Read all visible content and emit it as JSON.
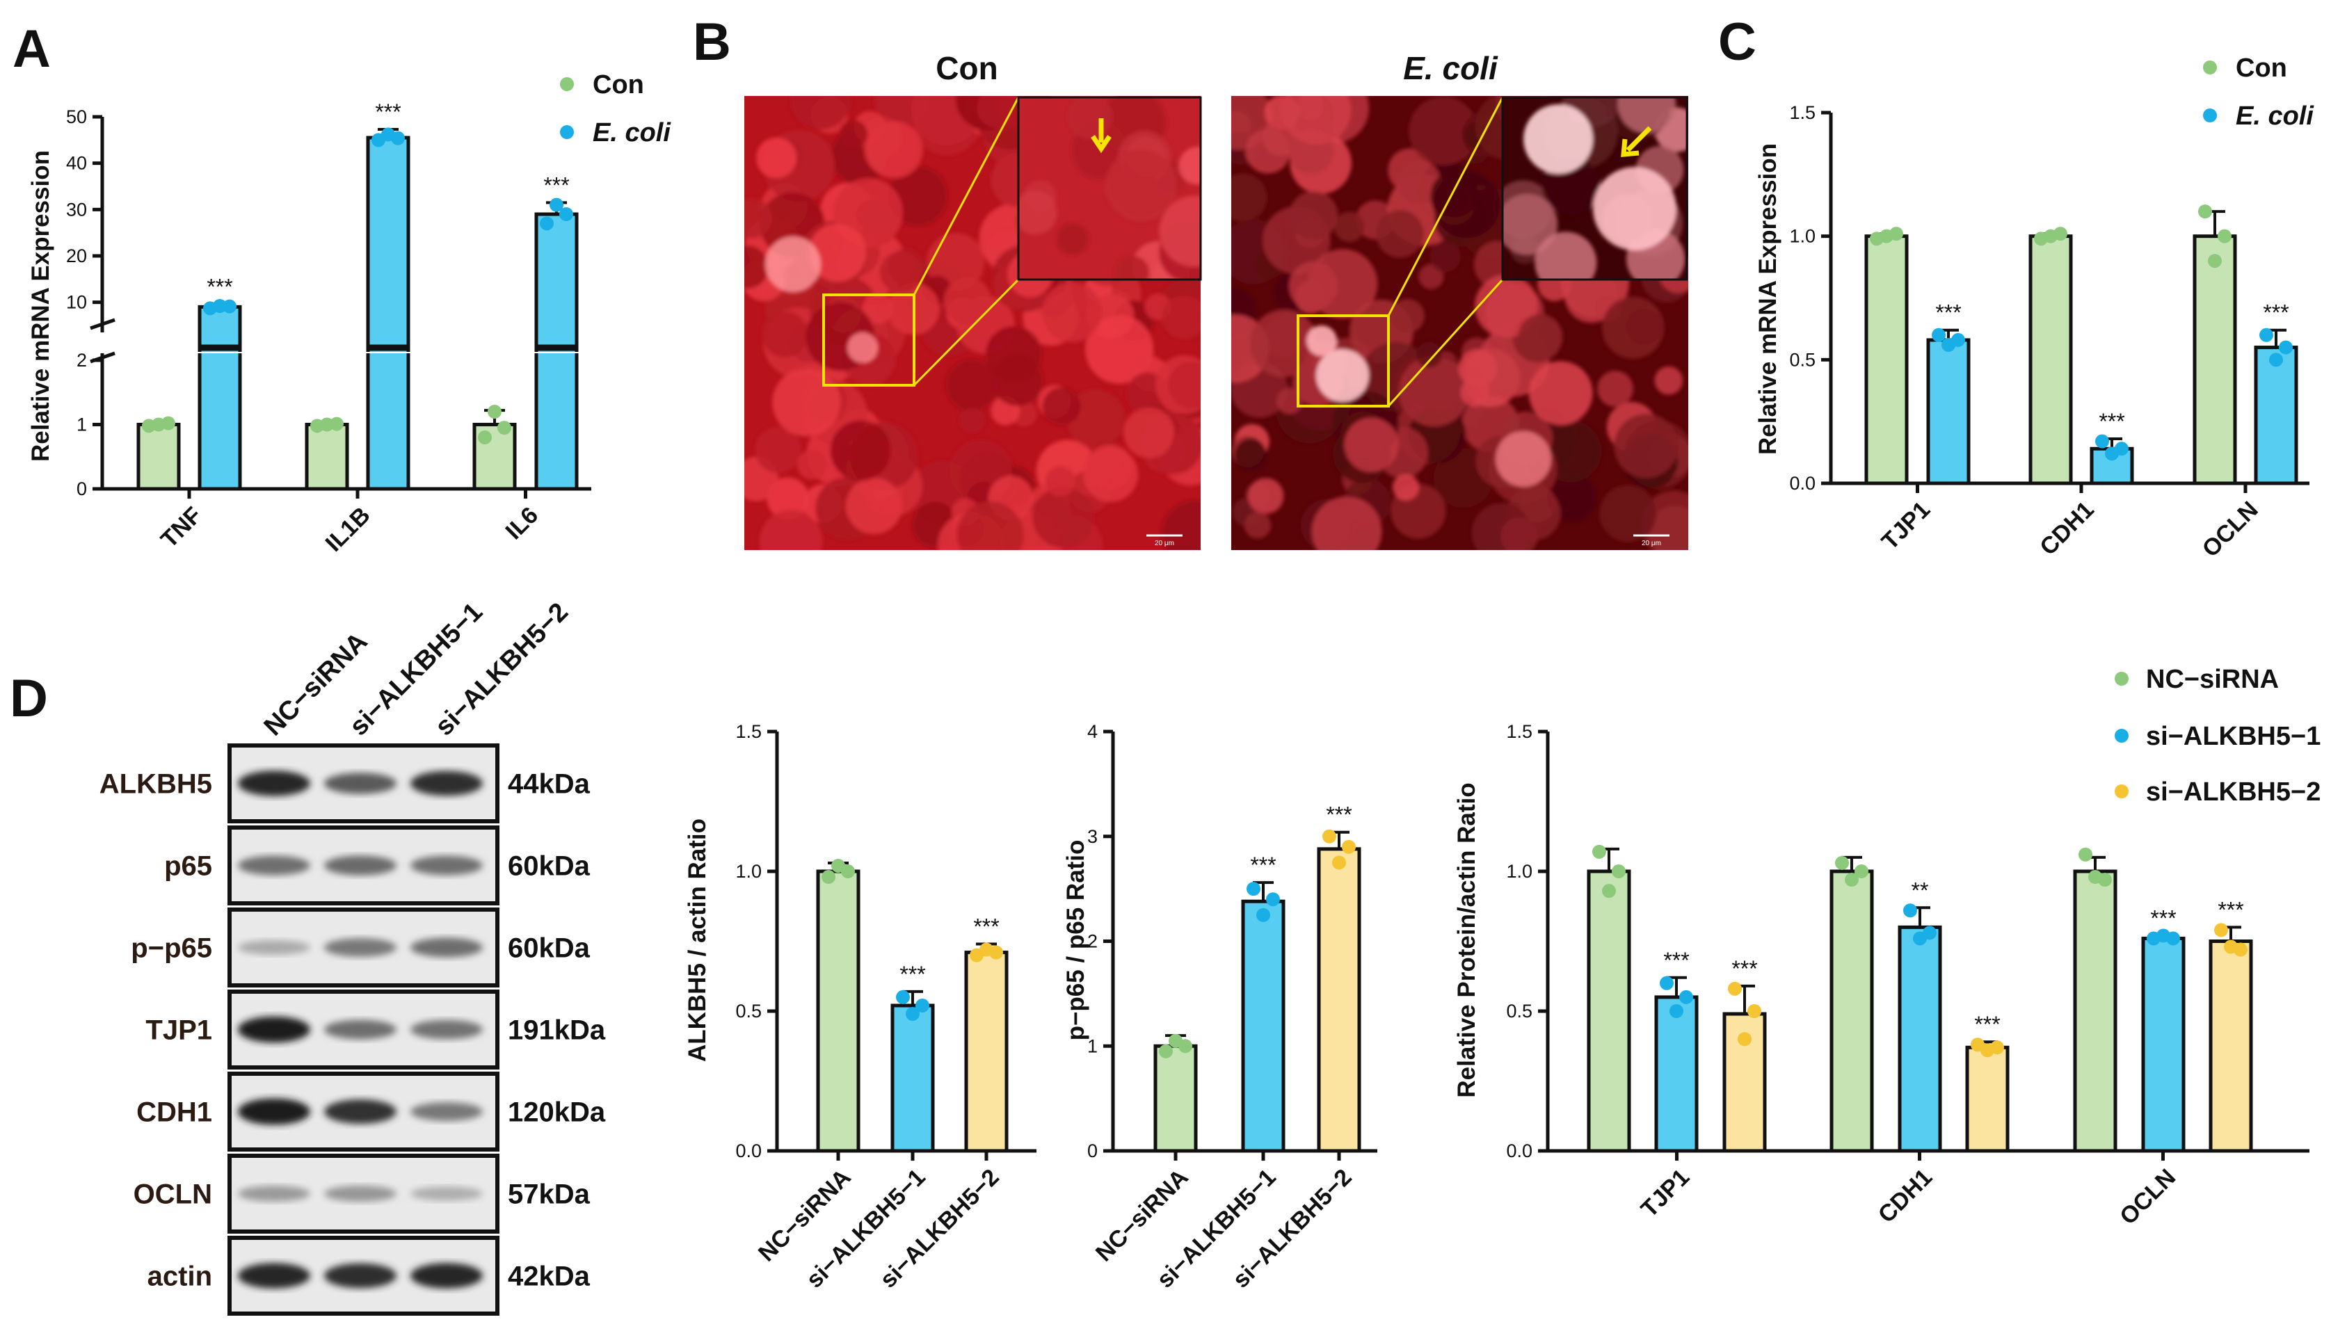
{
  "colors": {
    "con": "#8cc97a",
    "con_fill": "#c6e3b4",
    "ecoli": "#1aaee6",
    "ecoli_fill": "#58cdf2",
    "si2": "#f5c433",
    "si2_fill": "#fbe3a0",
    "axis": "#111111",
    "inset": "#f3e300"
  },
  "panel_labels": {
    "A": "A",
    "B": "B",
    "C": "C",
    "D": "D"
  },
  "legend_ac": {
    "con": "Con",
    "ecoli": "E. coli"
  },
  "legend_d": {
    "nc": "NC−siRNA",
    "si1": "si−ALKBH5−1",
    "si2": "si−ALKBH5−2"
  },
  "panel_b": {
    "con_title": "Con",
    "ecoli_title": "E. coli",
    "scale_label": "20 μm"
  },
  "western_blot": {
    "lanes": [
      "NC−siRNA",
      "si−ALKBH5−1",
      "si−ALKBH5−2"
    ],
    "rows": [
      {
        "protein": "ALKBH5",
        "kda": "44kDa",
        "intensity": [
          0.85,
          0.6,
          0.82
        ]
      },
      {
        "protein": "p65",
        "kda": "60kDa",
        "intensity": [
          0.5,
          0.52,
          0.5
        ]
      },
      {
        "protein": "p−p65",
        "kda": "60kDa",
        "intensity": [
          0.2,
          0.45,
          0.5
        ]
      },
      {
        "protein": "TJP1",
        "kda": "191kDa",
        "intensity": [
          0.9,
          0.5,
          0.48
        ]
      },
      {
        "protein": "CDH1",
        "kda": "120kDa",
        "intensity": [
          0.92,
          0.8,
          0.45
        ]
      },
      {
        "protein": "OCLN",
        "kda": "57kDa",
        "intensity": [
          0.28,
          0.3,
          0.18
        ]
      },
      {
        "protein": "actin",
        "kda": "42kDa",
        "intensity": [
          0.85,
          0.82,
          0.85
        ]
      }
    ]
  },
  "chart_data": [
    {
      "id": "A",
      "type": "bar",
      "ylabel": "Relative mRNA Expression",
      "categories": [
        "TNF",
        "IL1B",
        "IL6"
      ],
      "y_axis_broken": true,
      "lower_segment": {
        "ylim": [
          0,
          2
        ],
        "ticks": [
          "0",
          "1",
          "2"
        ]
      },
      "upper_segment": {
        "ylim": [
          5,
          50
        ],
        "ticks": [
          "10",
          "20",
          "30",
          "40",
          "50"
        ]
      },
      "series": [
        {
          "name": "Con",
          "values": [
            1.0,
            1.0,
            1.0
          ],
          "errors": [
            0.03,
            0.04,
            0.22
          ],
          "points": [
            [
              0.98,
              1.0,
              1.02
            ],
            [
              0.98,
              1.0,
              1.01
            ],
            [
              0.8,
              1.2,
              0.95
            ]
          ],
          "stars": [
            "",
            "",
            ""
          ]
        },
        {
          "name": "E. coli",
          "values": [
            9.0,
            45.5,
            29.0
          ],
          "errors": [
            0.6,
            1.8,
            2.5
          ],
          "points": [
            [
              8.7,
              9.2,
              9.1
            ],
            [
              45.0,
              46.2,
              45.4
            ],
            [
              27.0,
              31.0,
              29.0
            ]
          ],
          "stars": [
            "***",
            "***",
            "***"
          ]
        }
      ]
    },
    {
      "id": "C",
      "type": "bar",
      "ylabel": "Relative mRNA Expression",
      "categories": [
        "TJP1",
        "CDH1",
        "OCLN"
      ],
      "ylim": [
        0,
        1.5
      ],
      "ticks": [
        "0.0",
        "0.5",
        "1.0",
        "1.5"
      ],
      "series": [
        {
          "name": "Con",
          "values": [
            1.0,
            1.0,
            1.0
          ],
          "errors": [
            0.01,
            0.01,
            0.1
          ],
          "points": [
            [
              0.99,
              1.0,
              1.01
            ],
            [
              0.99,
              1.0,
              1.01
            ],
            [
              1.1,
              0.9,
              1.0
            ]
          ],
          "stars": [
            "",
            "",
            ""
          ]
        },
        {
          "name": "E. coli",
          "values": [
            0.58,
            0.14,
            0.55
          ],
          "errors": [
            0.04,
            0.04,
            0.07
          ],
          "points": [
            [
              0.6,
              0.56,
              0.58
            ],
            [
              0.17,
              0.12,
              0.14
            ],
            [
              0.6,
              0.5,
              0.55
            ]
          ],
          "stars": [
            "***",
            "***",
            "***"
          ]
        }
      ]
    },
    {
      "id": "D1",
      "type": "bar",
      "ylabel": "ALKBH5 / actin  Ratio",
      "categories": [
        "NC−siRNA",
        "si−ALKBH5−1",
        "si−ALKBH5−2"
      ],
      "ylim": [
        0,
        1.5
      ],
      "ticks": [
        "0.0",
        "0.5",
        "1.0",
        "1.5"
      ],
      "values": [
        1.0,
        0.52,
        0.71
      ],
      "errors": [
        0.03,
        0.05,
        0.03
      ],
      "points": [
        [
          0.98,
          1.02,
          1.0
        ],
        [
          0.55,
          0.49,
          0.52
        ],
        [
          0.7,
          0.72,
          0.71
        ]
      ],
      "stars": [
        "",
        "***",
        "***"
      ]
    },
    {
      "id": "D2",
      "type": "bar",
      "ylabel": "p−p65 / p65 Ratio",
      "categories": [
        "NC−siRNA",
        "si−ALKBH5−1",
        "si−ALKBH5−2"
      ],
      "ylim": [
        0,
        4
      ],
      "ticks": [
        "0",
        "1",
        "2",
        "3",
        "4"
      ],
      "values": [
        1.0,
        2.38,
        2.88
      ],
      "errors": [
        0.1,
        0.18,
        0.16
      ],
      "points": [
        [
          0.95,
          1.05,
          1.0
        ],
        [
          2.5,
          2.25,
          2.4
        ],
        [
          3.0,
          2.75,
          2.9
        ]
      ],
      "stars": [
        "",
        "***",
        "***"
      ]
    },
    {
      "id": "D3",
      "type": "bar",
      "ylabel": "Relative Protein/actin Ratio",
      "categories": [
        "TJP1",
        "CDH1",
        "OCLN"
      ],
      "ylim": [
        0,
        1.5
      ],
      "ticks": [
        "0.0",
        "0.5",
        "1.0",
        "1.5"
      ],
      "series": [
        {
          "name": "NC−siRNA",
          "values": [
            1.0,
            1.0,
            1.0
          ],
          "errors": [
            0.08,
            0.05,
            0.05
          ],
          "points": [
            [
              1.07,
              0.93,
              1.0
            ],
            [
              1.03,
              0.97,
              1.0
            ],
            [
              1.06,
              0.98,
              0.97
            ]
          ],
          "stars": [
            "",
            "",
            ""
          ]
        },
        {
          "name": "si−ALKBH5−1",
          "values": [
            0.55,
            0.8,
            0.76
          ],
          "errors": [
            0.07,
            0.07,
            0.01
          ],
          "points": [
            [
              0.6,
              0.5,
              0.55
            ],
            [
              0.86,
              0.76,
              0.78
            ],
            [
              0.76,
              0.77,
              0.76
            ]
          ],
          "stars": [
            "***",
            "**",
            "***"
          ]
        },
        {
          "name": "si−ALKBH5−2",
          "values": [
            0.49,
            0.37,
            0.75
          ],
          "errors": [
            0.1,
            0.02,
            0.05
          ],
          "points": [
            [
              0.58,
              0.4,
              0.5
            ],
            [
              0.38,
              0.36,
              0.37
            ],
            [
              0.79,
              0.73,
              0.72
            ]
          ],
          "stars": [
            "***",
            "***",
            "***"
          ]
        }
      ]
    }
  ]
}
